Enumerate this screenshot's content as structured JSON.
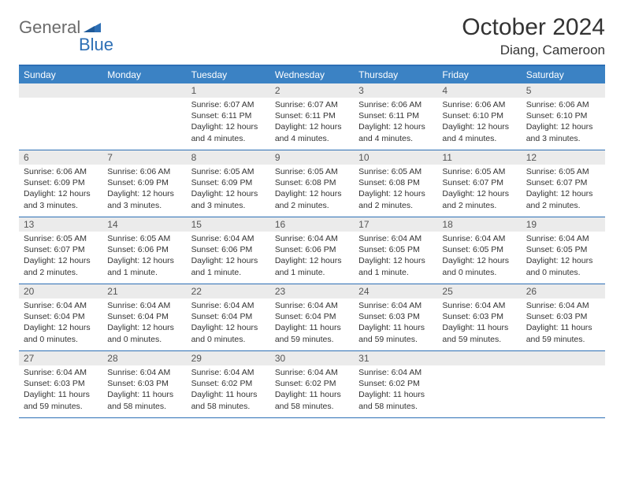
{
  "logo": {
    "general": "General",
    "blue": "Blue"
  },
  "title": "October 2024",
  "location": "Diang, Cameroon",
  "colors": {
    "header_bg": "#3b82c4",
    "border": "#2d6fb5",
    "daynum_bg": "#ebebeb",
    "text": "#333333",
    "logo_gray": "#6b6b6b",
    "logo_blue": "#2d6fb5"
  },
  "dayNames": [
    "Sunday",
    "Monday",
    "Tuesday",
    "Wednesday",
    "Thursday",
    "Friday",
    "Saturday"
  ],
  "weeks": [
    [
      null,
      null,
      {
        "n": "1",
        "sr": "Sunrise: 6:07 AM",
        "ss": "Sunset: 6:11 PM",
        "d1": "Daylight: 12 hours",
        "d2": "and 4 minutes."
      },
      {
        "n": "2",
        "sr": "Sunrise: 6:07 AM",
        "ss": "Sunset: 6:11 PM",
        "d1": "Daylight: 12 hours",
        "d2": "and 4 minutes."
      },
      {
        "n": "3",
        "sr": "Sunrise: 6:06 AM",
        "ss": "Sunset: 6:11 PM",
        "d1": "Daylight: 12 hours",
        "d2": "and 4 minutes."
      },
      {
        "n": "4",
        "sr": "Sunrise: 6:06 AM",
        "ss": "Sunset: 6:10 PM",
        "d1": "Daylight: 12 hours",
        "d2": "and 4 minutes."
      },
      {
        "n": "5",
        "sr": "Sunrise: 6:06 AM",
        "ss": "Sunset: 6:10 PM",
        "d1": "Daylight: 12 hours",
        "d2": "and 3 minutes."
      }
    ],
    [
      {
        "n": "6",
        "sr": "Sunrise: 6:06 AM",
        "ss": "Sunset: 6:09 PM",
        "d1": "Daylight: 12 hours",
        "d2": "and 3 minutes."
      },
      {
        "n": "7",
        "sr": "Sunrise: 6:06 AM",
        "ss": "Sunset: 6:09 PM",
        "d1": "Daylight: 12 hours",
        "d2": "and 3 minutes."
      },
      {
        "n": "8",
        "sr": "Sunrise: 6:05 AM",
        "ss": "Sunset: 6:09 PM",
        "d1": "Daylight: 12 hours",
        "d2": "and 3 minutes."
      },
      {
        "n": "9",
        "sr": "Sunrise: 6:05 AM",
        "ss": "Sunset: 6:08 PM",
        "d1": "Daylight: 12 hours",
        "d2": "and 2 minutes."
      },
      {
        "n": "10",
        "sr": "Sunrise: 6:05 AM",
        "ss": "Sunset: 6:08 PM",
        "d1": "Daylight: 12 hours",
        "d2": "and 2 minutes."
      },
      {
        "n": "11",
        "sr": "Sunrise: 6:05 AM",
        "ss": "Sunset: 6:07 PM",
        "d1": "Daylight: 12 hours",
        "d2": "and 2 minutes."
      },
      {
        "n": "12",
        "sr": "Sunrise: 6:05 AM",
        "ss": "Sunset: 6:07 PM",
        "d1": "Daylight: 12 hours",
        "d2": "and 2 minutes."
      }
    ],
    [
      {
        "n": "13",
        "sr": "Sunrise: 6:05 AM",
        "ss": "Sunset: 6:07 PM",
        "d1": "Daylight: 12 hours",
        "d2": "and 2 minutes."
      },
      {
        "n": "14",
        "sr": "Sunrise: 6:05 AM",
        "ss": "Sunset: 6:06 PM",
        "d1": "Daylight: 12 hours",
        "d2": "and 1 minute."
      },
      {
        "n": "15",
        "sr": "Sunrise: 6:04 AM",
        "ss": "Sunset: 6:06 PM",
        "d1": "Daylight: 12 hours",
        "d2": "and 1 minute."
      },
      {
        "n": "16",
        "sr": "Sunrise: 6:04 AM",
        "ss": "Sunset: 6:06 PM",
        "d1": "Daylight: 12 hours",
        "d2": "and 1 minute."
      },
      {
        "n": "17",
        "sr": "Sunrise: 6:04 AM",
        "ss": "Sunset: 6:05 PM",
        "d1": "Daylight: 12 hours",
        "d2": "and 1 minute."
      },
      {
        "n": "18",
        "sr": "Sunrise: 6:04 AM",
        "ss": "Sunset: 6:05 PM",
        "d1": "Daylight: 12 hours",
        "d2": "and 0 minutes."
      },
      {
        "n": "19",
        "sr": "Sunrise: 6:04 AM",
        "ss": "Sunset: 6:05 PM",
        "d1": "Daylight: 12 hours",
        "d2": "and 0 minutes."
      }
    ],
    [
      {
        "n": "20",
        "sr": "Sunrise: 6:04 AM",
        "ss": "Sunset: 6:04 PM",
        "d1": "Daylight: 12 hours",
        "d2": "and 0 minutes."
      },
      {
        "n": "21",
        "sr": "Sunrise: 6:04 AM",
        "ss": "Sunset: 6:04 PM",
        "d1": "Daylight: 12 hours",
        "d2": "and 0 minutes."
      },
      {
        "n": "22",
        "sr": "Sunrise: 6:04 AM",
        "ss": "Sunset: 6:04 PM",
        "d1": "Daylight: 12 hours",
        "d2": "and 0 minutes."
      },
      {
        "n": "23",
        "sr": "Sunrise: 6:04 AM",
        "ss": "Sunset: 6:04 PM",
        "d1": "Daylight: 11 hours",
        "d2": "and 59 minutes."
      },
      {
        "n": "24",
        "sr": "Sunrise: 6:04 AM",
        "ss": "Sunset: 6:03 PM",
        "d1": "Daylight: 11 hours",
        "d2": "and 59 minutes."
      },
      {
        "n": "25",
        "sr": "Sunrise: 6:04 AM",
        "ss": "Sunset: 6:03 PM",
        "d1": "Daylight: 11 hours",
        "d2": "and 59 minutes."
      },
      {
        "n": "26",
        "sr": "Sunrise: 6:04 AM",
        "ss": "Sunset: 6:03 PM",
        "d1": "Daylight: 11 hours",
        "d2": "and 59 minutes."
      }
    ],
    [
      {
        "n": "27",
        "sr": "Sunrise: 6:04 AM",
        "ss": "Sunset: 6:03 PM",
        "d1": "Daylight: 11 hours",
        "d2": "and 59 minutes."
      },
      {
        "n": "28",
        "sr": "Sunrise: 6:04 AM",
        "ss": "Sunset: 6:03 PM",
        "d1": "Daylight: 11 hours",
        "d2": "and 58 minutes."
      },
      {
        "n": "29",
        "sr": "Sunrise: 6:04 AM",
        "ss": "Sunset: 6:02 PM",
        "d1": "Daylight: 11 hours",
        "d2": "and 58 minutes."
      },
      {
        "n": "30",
        "sr": "Sunrise: 6:04 AM",
        "ss": "Sunset: 6:02 PM",
        "d1": "Daylight: 11 hours",
        "d2": "and 58 minutes."
      },
      {
        "n": "31",
        "sr": "Sunrise: 6:04 AM",
        "ss": "Sunset: 6:02 PM",
        "d1": "Daylight: 11 hours",
        "d2": "and 58 minutes."
      },
      null,
      null
    ]
  ]
}
